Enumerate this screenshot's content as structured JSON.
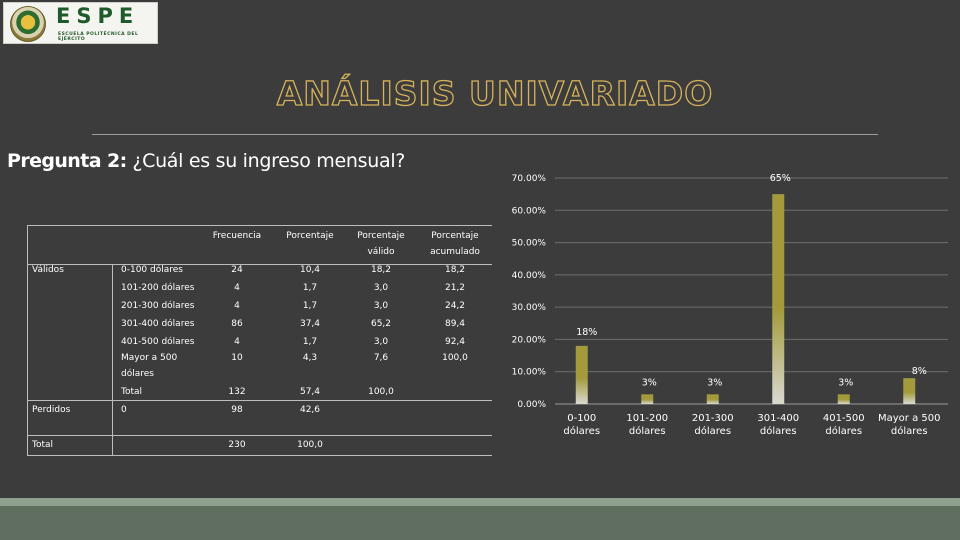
{
  "logo": {
    "name": "ESPE",
    "subtitle": "ESCUELA POLITÉCNICA DEL EJÉRCITO"
  },
  "title": "ANÁLISIS UNIVARIADO",
  "question": {
    "label": "Pregunta 2:",
    "text": " ¿Cuál es su ingreso mensual?"
  },
  "table": {
    "headers": {
      "frecuencia": "Frecuencia",
      "porcentaje": "Porcentaje",
      "porcentaje_valido_1": "Porcentaje",
      "porcentaje_valido_2": "válido",
      "porcentaje_acumulado_1": "Porcentaje",
      "porcentaje_acumulado_2": "acumulado"
    },
    "group_validos": "Válidos",
    "group_perdidos": "Perdidos",
    "group_total": "Total",
    "rows": [
      {
        "label": "0-100 dólares",
        "frecuencia": "24",
        "porcentaje": "10,4",
        "valido": "18,2",
        "acumulado": "18,2"
      },
      {
        "label": "101-200 dólares",
        "frecuencia": "4",
        "porcentaje": "1,7",
        "valido": "3,0",
        "acumulado": "21,2"
      },
      {
        "label": "201-300 dólares",
        "frecuencia": "4",
        "porcentaje": "1,7",
        "valido": "3,0",
        "acumulado": "24,2"
      },
      {
        "label": "301-400 dólares",
        "frecuencia": "86",
        "porcentaje": "37,4",
        "valido": "65,2",
        "acumulado": "89,4"
      },
      {
        "label": "401-500 dólares",
        "frecuencia": "4",
        "porcentaje": "1,7",
        "valido": "3,0",
        "acumulado": "92,4"
      },
      {
        "label_1": "Mayor a 500",
        "label_2": "dólares",
        "frecuencia": "10",
        "porcentaje": "4,3",
        "valido": "7,6",
        "acumulado": "100,0"
      }
    ],
    "validos_total": {
      "label": "Total",
      "frecuencia": "132",
      "porcentaje": "57,4",
      "valido": "100,0"
    },
    "perdidos": {
      "label": "0",
      "frecuencia": "98",
      "porcentaje": "42,6"
    },
    "total": {
      "frecuencia": "230",
      "porcentaje": "100,0"
    }
  },
  "chart_data": {
    "type": "bar",
    "categories": [
      [
        "0-100",
        "dólares"
      ],
      [
        "101-200",
        "dólares"
      ],
      [
        "201-300",
        "dólares"
      ],
      [
        "301-400",
        "dólares"
      ],
      [
        "401-500",
        "dólares"
      ],
      [
        "Mayor a 500",
        "dólares"
      ]
    ],
    "values": [
      18,
      3,
      3,
      65,
      3,
      8
    ],
    "data_labels": [
      "18%",
      "3%",
      "3%",
      "65%",
      "3%",
      "8%"
    ],
    "yticks": [
      "0.00%",
      "10.00%",
      "20.00%",
      "30.00%",
      "40.00%",
      "50.00%",
      "60.00%",
      "70.00%"
    ],
    "ylim": [
      0,
      70
    ],
    "grid": true,
    "bar_color_top": "#a39a3c",
    "bar_color_bottom": "#d9d9d0"
  }
}
